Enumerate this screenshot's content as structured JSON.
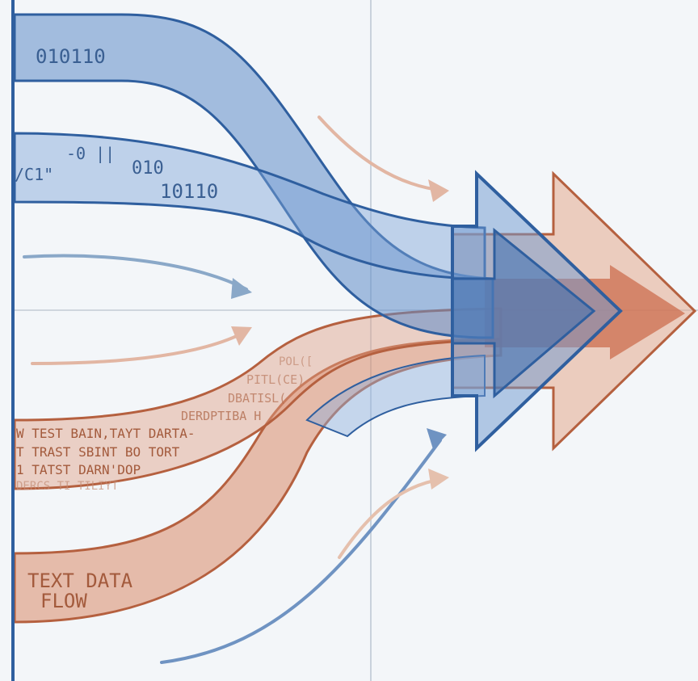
{
  "colors": {
    "background": "#f3f6f9",
    "blue_fill": "#5f8dc9",
    "blue_stroke": "#2f5f9f",
    "orange_fill": "#d98a6a",
    "orange_stroke": "#b5603f",
    "guide": "#c9d2dc",
    "axis": "#2f5f9f"
  },
  "labels": {
    "binary_top": "010110",
    "binary_mid_a": "-0  ||",
    "binary_mid_b": "010",
    "binary_mid_c": "10110",
    "binary_left": "/C1\"",
    "text_flow_line1": "TEXT DATA",
    "text_flow_line2": "FLOW",
    "garble_1": "W TEST BAIN,TAYT DARTA-",
    "garble_2": "T TRAST SBINT BO TORT",
    "garble_3": "1 TATST DARN'DOP",
    "garble_4": "DERCS TI TILIYT",
    "garble_5": "DERDPTIBA H",
    "garble_6": "DBATISL(",
    "garble_7": "PITL(CE)",
    "garble_8": "POL(["
  },
  "icons": {
    "big_blue_arrow": "arrow-right-icon",
    "big_orange_arrow": "arrow-right-icon"
  }
}
